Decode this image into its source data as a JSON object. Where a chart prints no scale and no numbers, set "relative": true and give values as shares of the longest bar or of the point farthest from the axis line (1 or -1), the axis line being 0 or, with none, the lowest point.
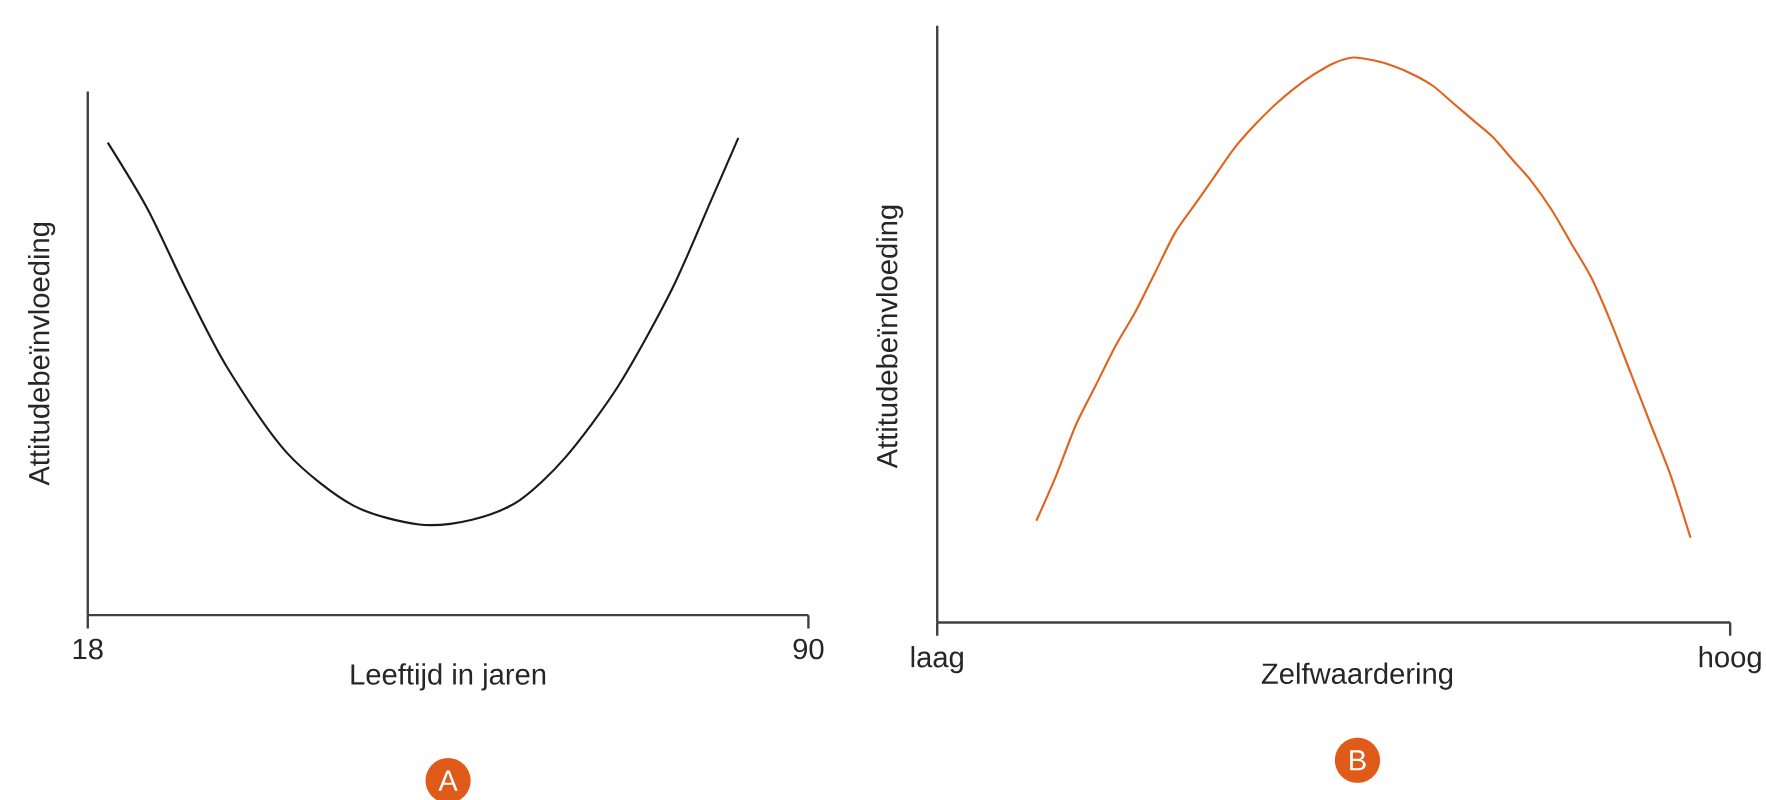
{
  "chart_data": [
    {
      "type": "line",
      "xlabel": "Leeftijd in jaren",
      "ylabel": "Attitudebeïnvloeding",
      "relative": true,
      "marker": "none",
      "xlim": [
        18,
        90
      ],
      "xticks": [
        18,
        90
      ],
      "annotations": [
        "A"
      ],
      "series": [
        {
          "color": "#1a1a1a",
          "x": [
            20.0,
            24.0,
            27.9,
            31.9,
            37.9,
            44.5,
            51.1,
            56.4,
            61.1,
            65.7,
            71.0,
            76.3,
            80.3,
            83.0
          ],
          "values": [
            0.99,
            0.85,
            0.68,
            0.52,
            0.34,
            0.23,
            0.19,
            0.2,
            0.24,
            0.33,
            0.48,
            0.68,
            0.87,
            1.0
          ]
        }
      ]
    },
    {
      "type": "line",
      "xlabel": "Zelfwaardering",
      "ylabel": "Attitudebeïnvloeding",
      "relative": true,
      "marker": "none",
      "annotations": [
        "B"
      ],
      "categories": [
        "laag",
        null,
        null,
        null,
        null,
        null,
        null,
        null,
        null,
        null,
        null,
        null,
        null,
        null,
        null,
        null,
        null,
        null,
        null,
        null,
        null,
        null,
        null,
        null,
        null,
        null,
        null,
        null,
        null,
        null,
        null,
        null,
        null,
        null,
        null,
        null,
        null,
        null,
        null,
        null,
        "hoog"
      ],
      "series": [
        {
          "color": "#e0641e",
          "values": [
            null,
            null,
            null,
            null,
            null,
            0.18,
            0.26,
            0.35,
            0.42,
            0.49,
            0.55,
            0.62,
            0.69,
            0.74,
            0.79,
            0.84,
            0.88,
            0.915,
            0.945,
            0.97,
            0.99,
            1.0,
            0.995,
            0.985,
            0.97,
            0.95,
            0.92,
            0.89,
            0.86,
            0.82,
            0.78,
            0.73,
            0.67,
            0.61,
            0.53,
            0.44,
            0.35,
            0.26,
            0.15,
            null,
            null
          ]
        }
      ]
    }
  ]
}
